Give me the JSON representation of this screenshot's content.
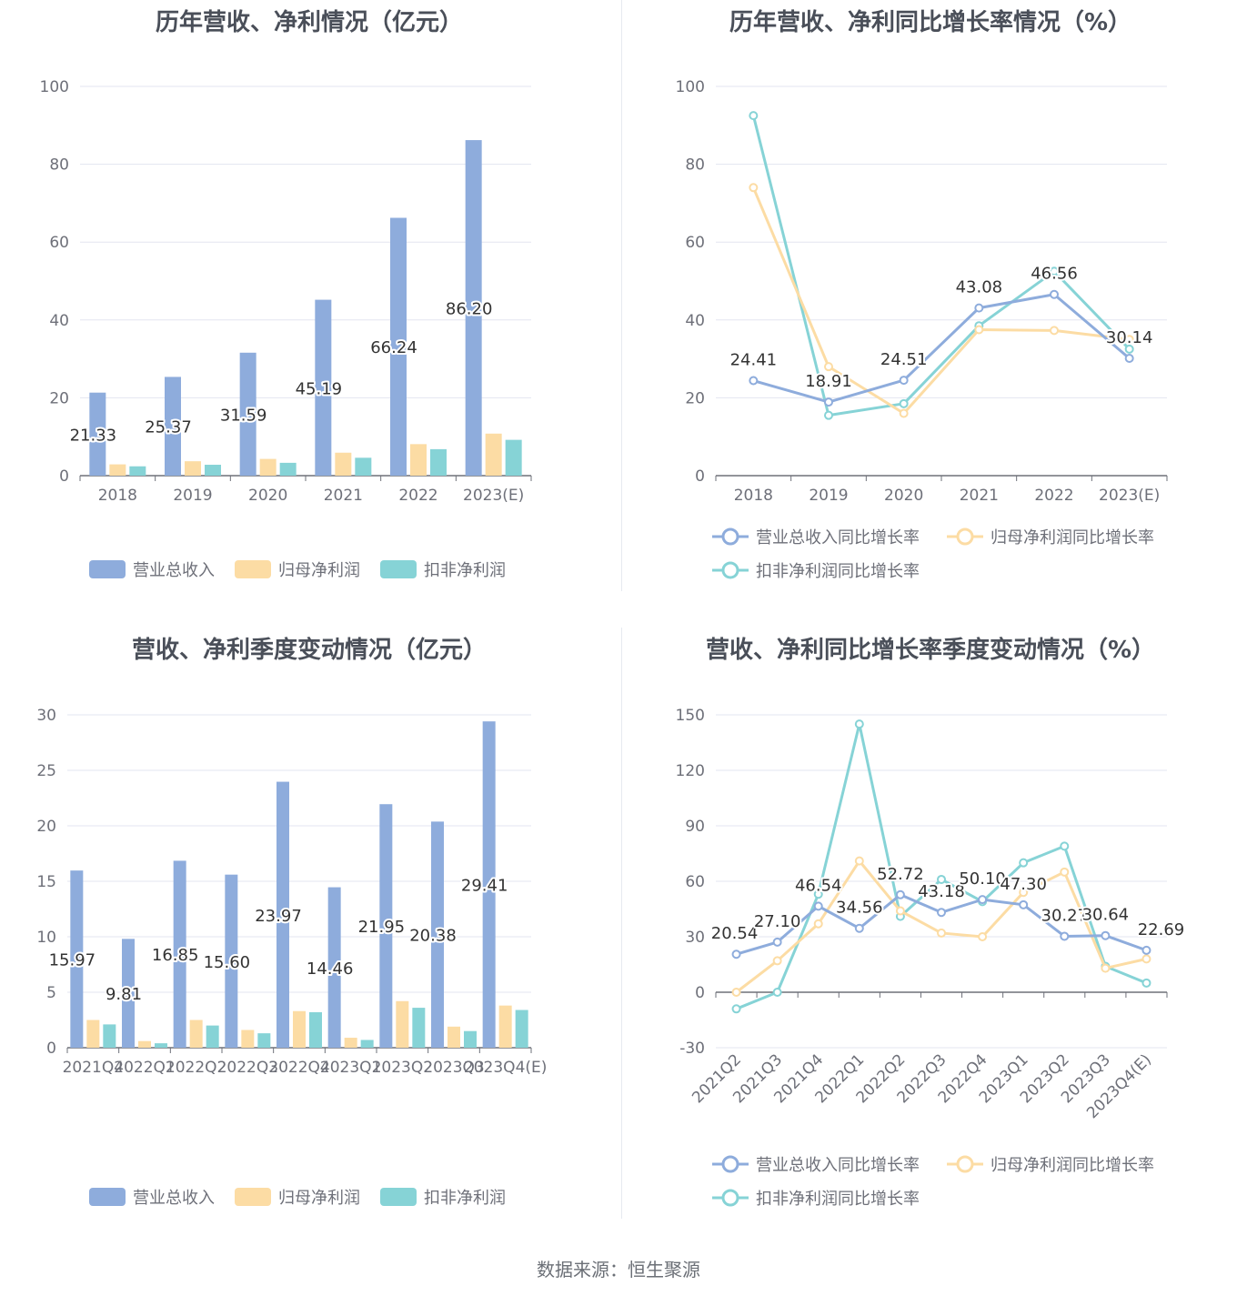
{
  "source": "数据来源：恒生聚源",
  "colors": {
    "revenue": "#8eacdc",
    "netprofit": "#fcdca4",
    "deducted": "#86d3d6",
    "axis": "#6e7079",
    "grid": "#e3e6f0",
    "label": "#333333"
  },
  "chart_data": [
    {
      "id": "annual-amount",
      "type": "bar",
      "title": "历年营收、净利情况（亿元）",
      "categories": [
        "2018",
        "2019",
        "2020",
        "2021",
        "2022",
        "2023(E)"
      ],
      "ylim": [
        0,
        100
      ],
      "yticks": [
        0,
        20,
        40,
        60,
        80,
        100
      ],
      "grid": true,
      "legend_position": "bottom",
      "series": [
        {
          "name": "营业总收入",
          "values": [
            21.33,
            25.37,
            31.59,
            45.19,
            66.24,
            86.2
          ],
          "labels": [
            "21.33",
            "25.37",
            "31.59",
            "45.19",
            "66.24",
            "86.20"
          ]
        },
        {
          "name": "归母净利润",
          "values": [
            2.9,
            3.7,
            4.3,
            5.9,
            8.1,
            10.8
          ]
        },
        {
          "name": "扣非净利润",
          "values": [
            2.4,
            2.8,
            3.3,
            4.6,
            6.8,
            9.2
          ]
        }
      ]
    },
    {
      "id": "annual-growth",
      "type": "line",
      "title": "历年营收、净利同比增长率情况（%）",
      "categories": [
        "2018",
        "2019",
        "2020",
        "2021",
        "2022",
        "2023(E)"
      ],
      "ylim": [
        0,
        100
      ],
      "yticks": [
        0,
        20,
        40,
        60,
        80,
        100
      ],
      "grid": true,
      "legend_position": "bottom",
      "series": [
        {
          "name": "营业总收入同比增长率",
          "values": [
            24.41,
            18.91,
            24.51,
            43.08,
            46.56,
            30.14
          ],
          "labels": [
            "24.41",
            "18.91",
            "24.51",
            "43.08",
            "46.56",
            "30.14"
          ]
        },
        {
          "name": "归母净利润同比增长率",
          "values": [
            74,
            28,
            16,
            37.5,
            37.3,
            35
          ]
        },
        {
          "name": "扣非净利润同比增长率",
          "values": [
            92.5,
            15.5,
            18.5,
            38.5,
            52.5,
            32.5
          ]
        }
      ]
    },
    {
      "id": "quarterly-amount",
      "type": "bar",
      "title": "营收、净利季度变动情况（亿元）",
      "categories": [
        "2021Q4",
        "2022Q1",
        "2022Q2",
        "2022Q3",
        "2022Q4",
        "2023Q1",
        "2023Q2",
        "2023Q3",
        "2023Q4(E)"
      ],
      "ylim": [
        0,
        30
      ],
      "yticks": [
        0,
        5,
        10,
        15,
        20,
        25,
        30
      ],
      "grid": true,
      "legend_position": "bottom",
      "series": [
        {
          "name": "营业总收入",
          "values": [
            15.97,
            9.81,
            16.85,
            15.6,
            23.97,
            14.46,
            21.95,
            20.38,
            29.41
          ],
          "labels": [
            "15.97",
            "9.81",
            "16.85",
            "15.60",
            "23.97",
            "14.46",
            "21.95",
            "20.38",
            "29.41"
          ]
        },
        {
          "name": "归母净利润",
          "values": [
            2.5,
            0.6,
            2.5,
            1.6,
            3.3,
            0.9,
            4.2,
            1.9,
            3.8
          ]
        },
        {
          "name": "扣非净利润",
          "values": [
            2.1,
            0.4,
            2.0,
            1.3,
            3.2,
            0.7,
            3.6,
            1.5,
            3.4
          ]
        }
      ]
    },
    {
      "id": "quarterly-growth",
      "type": "line",
      "title": "营收、净利同比增长率季度变动情况（%）",
      "categories": [
        "2021Q2",
        "2021Q3",
        "2021Q4",
        "2022Q1",
        "2022Q2",
        "2022Q3",
        "2022Q4",
        "2023Q1",
        "2023Q2",
        "2023Q3",
        "2023Q4(E)"
      ],
      "ylim": [
        -30,
        150
      ],
      "yticks": [
        -30,
        0,
        30,
        60,
        90,
        120,
        150
      ],
      "grid": true,
      "legend_position": "bottom",
      "series": [
        {
          "name": "营业总收入同比增长率",
          "values": [
            20.54,
            27.1,
            46.54,
            34.56,
            52.72,
            43.18,
            50.1,
            47.3,
            30.27,
            30.64,
            22.69
          ],
          "labels": [
            "20.54",
            "27.10",
            "46.54",
            "34.56",
            "52.72",
            "43.18",
            "50.10",
            "47.30",
            "30.27",
            "30.64",
            "22.69"
          ]
        },
        {
          "name": "归母净利润同比增长率",
          "values": [
            0,
            17,
            37,
            71,
            44,
            32,
            30,
            54,
            65,
            13,
            18
          ]
        },
        {
          "name": "扣非净利润同比增长率",
          "values": [
            -9,
            0,
            53,
            145,
            41,
            61,
            49,
            70,
            79,
            14,
            5
          ]
        }
      ]
    }
  ]
}
